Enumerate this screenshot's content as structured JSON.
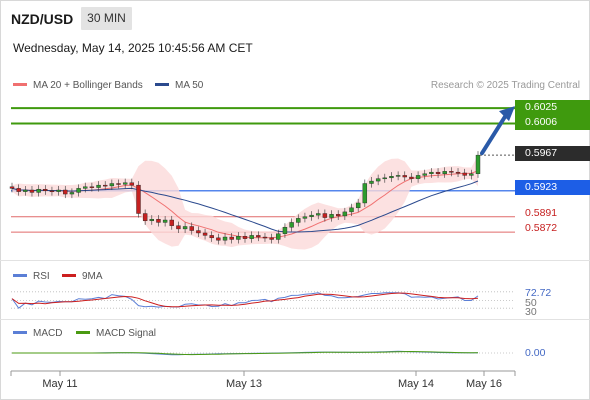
{
  "header": {
    "symbol": "NZD/USD",
    "interval": "30 MIN",
    "datetime": "Wednesday, May 14, 2025 10:45:56 AM CET"
  },
  "legend": {
    "ma20_label": "MA 20 + Bollinger Bands",
    "ma50_label": "MA 50",
    "credit": "Research © 2025 Trading Central"
  },
  "colors": {
    "ma20": "#f07070",
    "ma50": "#2b4a8e",
    "bull": "#2e9c2e",
    "bear": "#c62020",
    "green_level": "#3f9a0e",
    "pivot": "#1d5ee6",
    "support": "#e06a6a",
    "rsi": "#5b7fd6",
    "rsi_ma": "#cc1f1f",
    "macd": "#5b7fd6",
    "macd_signal": "#4a9a12"
  },
  "levels": {
    "r2": "0.6025",
    "r1": "0.6006",
    "last": "0.5967",
    "pivot": "0.5923",
    "s1": "0.5891",
    "s2": "0.5872"
  },
  "rsi_panel": {
    "rsi_label": "RSI",
    "ma_label": "9MA",
    "value": "72.72",
    "level_mid": "50",
    "level_low": "30"
  },
  "macd_panel": {
    "macd_label": "MACD",
    "signal_label": "MACD Signal",
    "value": "0.00"
  },
  "x_axis": {
    "labels": [
      "May 11",
      "May 13",
      "May 14",
      "May 16"
    ]
  },
  "chart_data": {
    "type": "candlestick",
    "y_unit": "NZD/USD price",
    "close_series": [
      0.5926,
      0.5922,
      0.5924,
      0.5921,
      0.5925,
      0.5923,
      0.5922,
      0.5924,
      0.5919,
      0.5921,
      0.5926,
      0.5928,
      0.5927,
      0.593,
      0.5929,
      0.5932,
      0.5931,
      0.5933,
      0.593,
      0.5895,
      0.5886,
      0.5888,
      0.5884,
      0.5887,
      0.588,
      0.5876,
      0.5879,
      0.5874,
      0.5871,
      0.5868,
      0.5865,
      0.5862,
      0.5866,
      0.5863,
      0.5867,
      0.5864,
      0.5868,
      0.5866,
      0.5865,
      0.5863,
      0.587,
      0.5878,
      0.5884,
      0.5889,
      0.5891,
      0.5893,
      0.5895,
      0.589,
      0.5894,
      0.5892,
      0.5897,
      0.5902,
      0.5908,
      0.5932,
      0.5935,
      0.5938,
      0.5939,
      0.5941,
      0.5942,
      0.594,
      0.5938,
      0.5942,
      0.5944,
      0.5946,
      0.5944,
      0.5947,
      0.5946,
      0.5945,
      0.5942,
      0.5944,
      0.5967
    ],
    "forecast_target": 0.6025,
    "y_range": [
      0.585,
      0.6035
    ]
  }
}
